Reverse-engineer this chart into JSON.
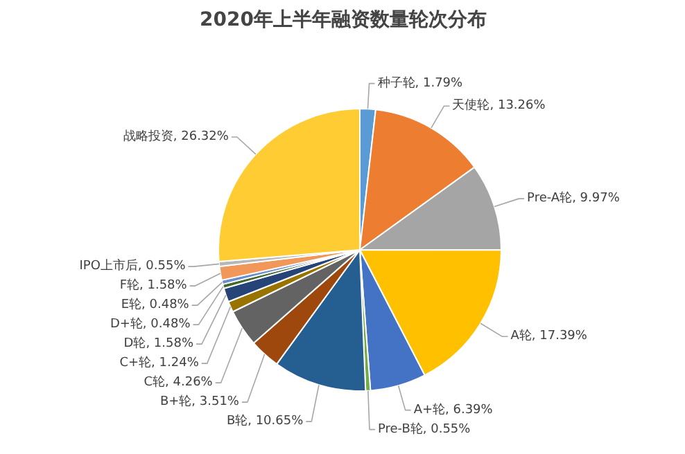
{
  "chart_data": {
    "type": "pie",
    "title": "2020年上半年融资数量轮次分布",
    "categories": [
      "种子轮",
      "天使轮",
      "Pre-A轮",
      "A轮",
      "A+轮",
      "Pre-B轮",
      "B轮",
      "B+轮",
      "C轮",
      "C+轮",
      "D轮",
      "D+轮",
      "E轮",
      "F轮",
      "IPO上市后",
      "战略投资"
    ],
    "values": [
      1.79,
      13.26,
      9.97,
      17.39,
      6.39,
      0.55,
      10.65,
      3.51,
      4.26,
      1.24,
      1.58,
      0.48,
      0.48,
      1.58,
      0.55,
      26.32
    ],
    "colors": [
      "#5b9bd5",
      "#ed7d31",
      "#a5a5a5",
      "#ffc000",
      "#4472c4",
      "#70ad47",
      "#255e91",
      "#9e480e",
      "#636363",
      "#997300",
      "#264478",
      "#43682b",
      "#698ed0",
      "#f1975a",
      "#b7b7b7",
      "#ffcd33"
    ],
    "value_labels": [
      "1.79%",
      "13.26%",
      "9.97%",
      "17.39%",
      "6.39%",
      "0.55%",
      "10.65%",
      "3.51%",
      "4.26%",
      "1.24%",
      "1.58%",
      "0.48%",
      "0.48%",
      "1.58%",
      "0.55%",
      "26.32%"
    ]
  }
}
